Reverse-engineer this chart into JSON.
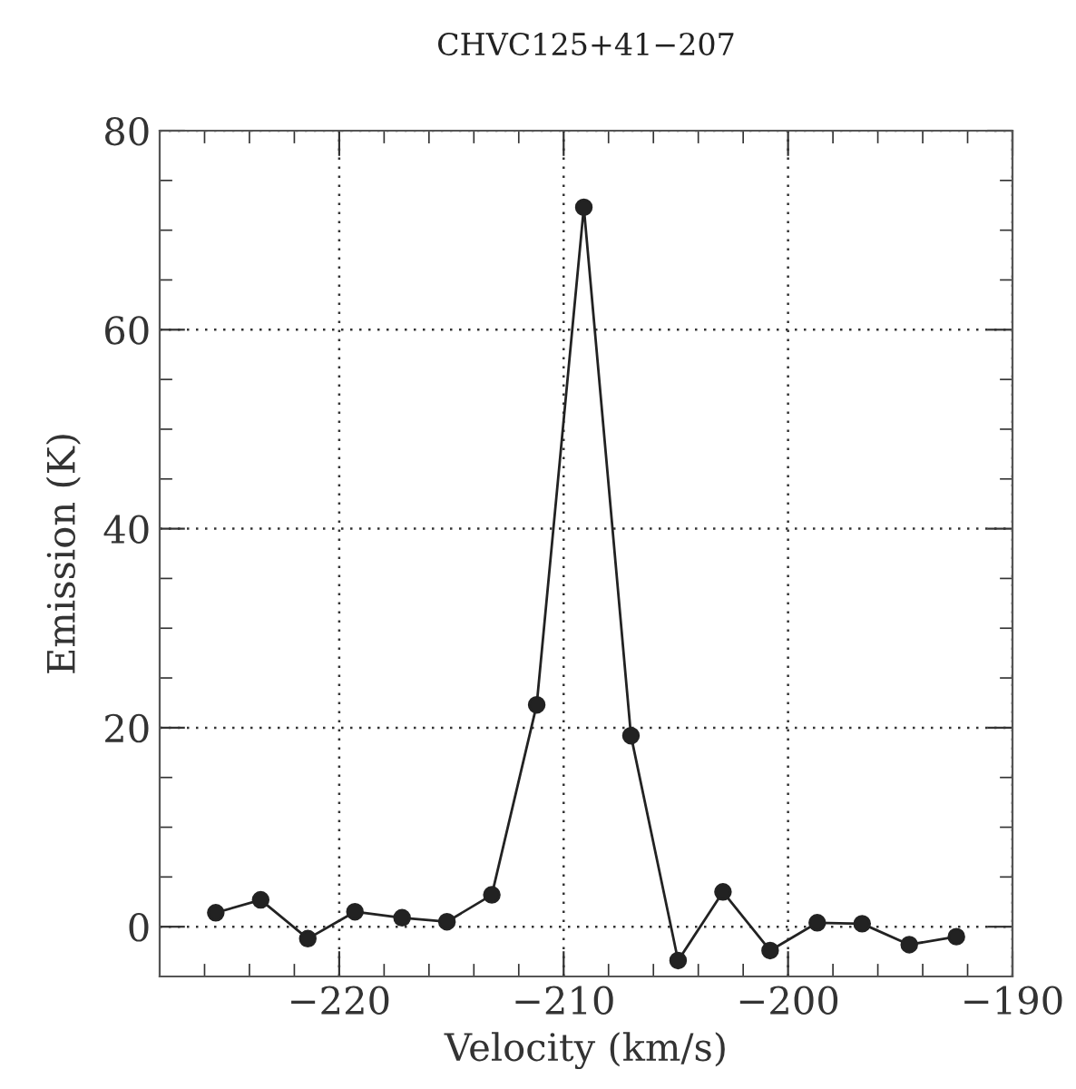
{
  "chart_data": {
    "type": "line",
    "title": "CHVC125+41−207",
    "xlabel": "Velocity (km/s)",
    "ylabel": "Emission (K)",
    "x": [
      -225.5,
      -223.5,
      -221.4,
      -219.3,
      -217.2,
      -215.2,
      -213.2,
      -211.2,
      -209.1,
      -207.0,
      -204.9,
      -202.9,
      -200.8,
      -198.7,
      -196.7,
      -194.6,
      -192.5
    ],
    "values": [
      1.4,
      2.7,
      -1.2,
      1.5,
      0.9,
      0.5,
      3.2,
      22.3,
      72.3,
      19.2,
      -3.4,
      3.5,
      -2.4,
      0.4,
      0.3,
      -1.8,
      -1.0
    ],
    "color": "#222222",
    "marker": "circle",
    "line_style": "solid",
    "grid": true,
    "xlim": [
      -228,
      -190
    ],
    "ylim": [
      -5,
      80
    ],
    "xticks": [
      {
        "value": -220,
        "label": "−220"
      },
      {
        "value": -210,
        "label": "−210"
      },
      {
        "value": -200,
        "label": "−200"
      },
      {
        "value": -190,
        "label": "−190"
      }
    ],
    "yticks": [
      0,
      20,
      40,
      60,
      80
    ]
  }
}
